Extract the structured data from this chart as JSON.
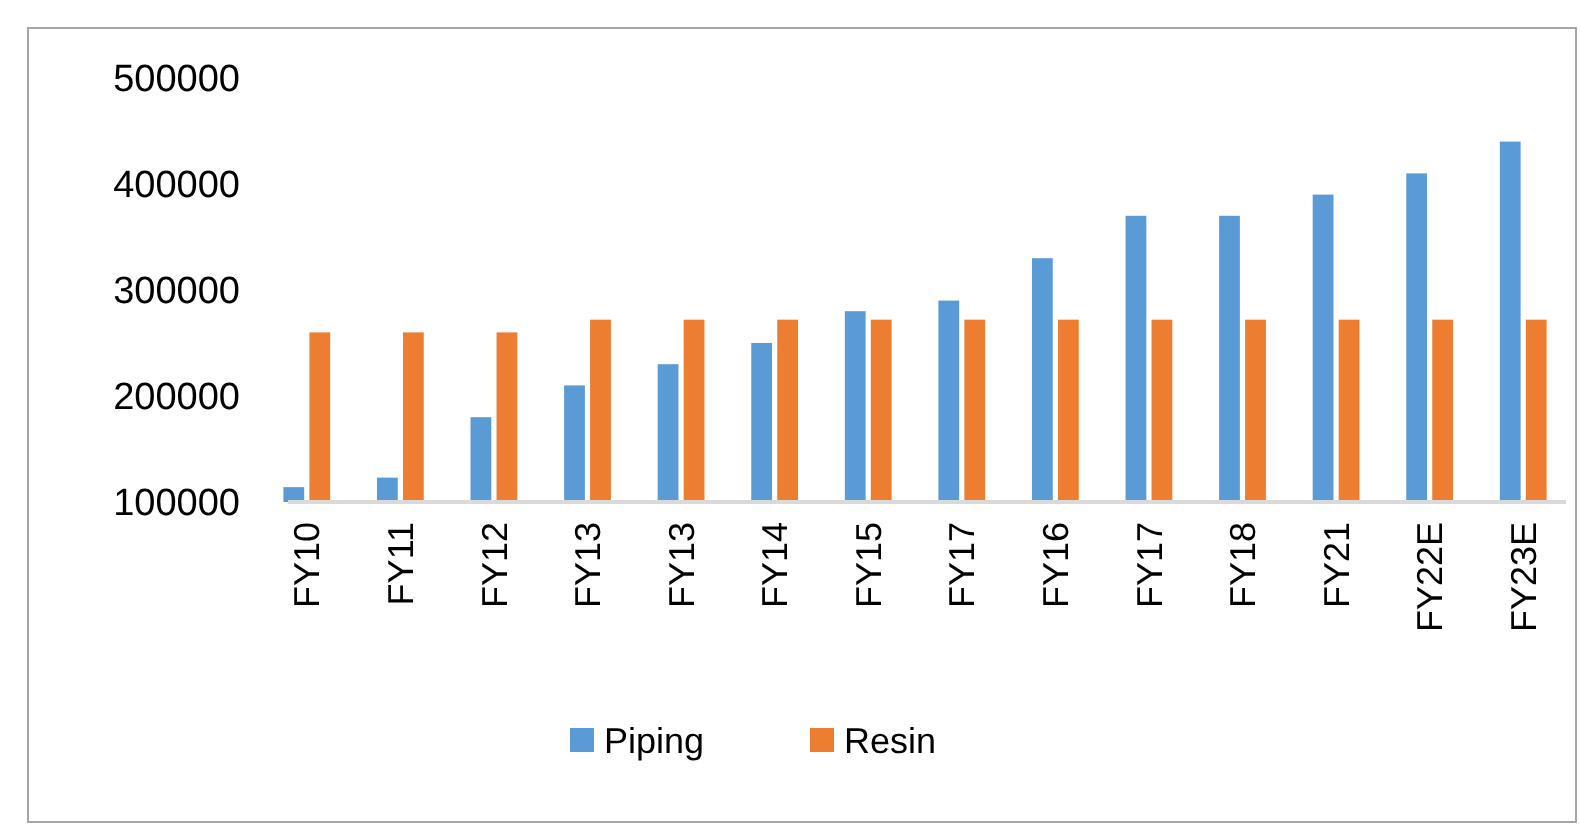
{
  "chart_data": {
    "type": "bar",
    "categories": [
      "FY10",
      "FY11",
      "FY12",
      "FY13",
      "FY13",
      "FY14",
      "FY15",
      "FY17",
      "FY16",
      "FY17",
      "FY18",
      "FY21",
      "FY22E",
      "FY23E"
    ],
    "series": [
      {
        "name": "Piping",
        "color": "#5b9bd5",
        "values": [
          114000,
          123000,
          180000,
          210000,
          230000,
          250000,
          280000,
          290000,
          330000,
          370000,
          370000,
          390000,
          410000,
          440000
        ]
      },
      {
        "name": "Resin",
        "color": "#ed7d31",
        "values": [
          260000,
          260000,
          260000,
          272000,
          272000,
          272000,
          272000,
          272000,
          272000,
          272000,
          272000,
          272000,
          272000,
          272000
        ]
      }
    ],
    "ylim": [
      100000,
      500000
    ],
    "yticks": [
      100000,
      200000,
      300000,
      400000,
      500000
    ],
    "grid": false,
    "legend": "bottom"
  }
}
